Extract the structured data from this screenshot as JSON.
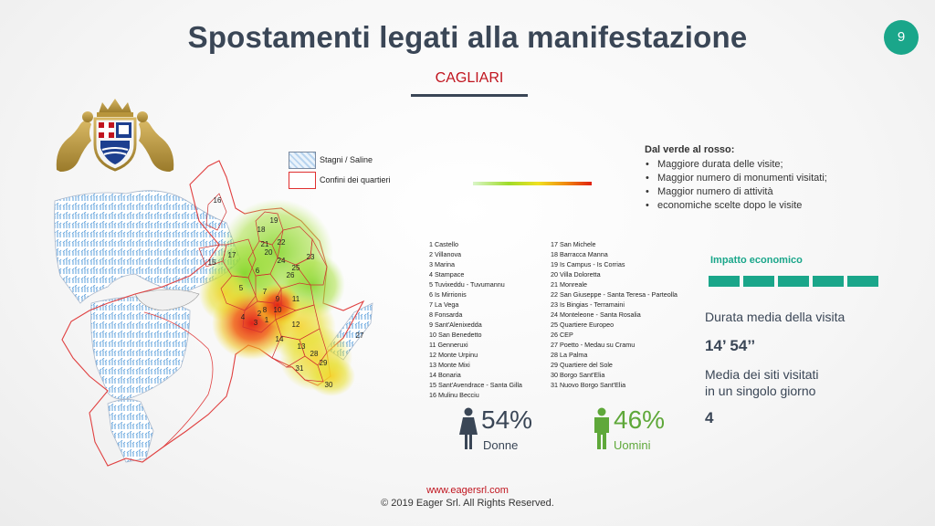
{
  "header": {
    "title": "Spostamenti legati alla manifestazione",
    "page_number": "9",
    "subtitle": "CAGLIARI"
  },
  "legend": {
    "swamp": "Stagni / Saline",
    "borders": "Confini dei quartieri"
  },
  "info": {
    "heading": "Dal verde al rosso:",
    "items": [
      "Maggiore durata delle visite;",
      "Maggior numero di monumenti visitati;",
      "Maggior numero di attività",
      "economiche scelte dopo le visite"
    ]
  },
  "districts_left": [
    "1 Castello",
    "2 Villanova",
    "3 Marina",
    "4 Stampace",
    "5 Tuvixeddu - Tuvumannu",
    "6 Is Mirrionis",
    "7 La Vega",
    "8 Fonsarda",
    "9 Sant'Alenixedda",
    "10 San Benedetto",
    "11 Genneruxi",
    "12 Monte Urpinu",
    "13 Monte Mixi",
    "14 Bonaria",
    "15 Sant'Avendrace - Santa Gilla",
    "16 Mulinu Becciu"
  ],
  "districts_right": [
    "17 San Michele",
    "18 Barracca Manna",
    "19 Is Campus - Is Corrias",
    "20 Villa Doloretta",
    "21 Monreale",
    "22 San Giuseppe - Santa Teresa - Parteolla",
    "23 Is Bingias - Terramaini",
    "24 Monteleone - Santa Rosalia",
    "25 Quartiere Europeo",
    "26 CEP",
    "27 Poetto - Medau su Cramu",
    "28 La Palma",
    "29 Quartiere del Sole",
    "30 Borgo Sant'Elia",
    "31 Nuovo Borgo Sant'Elia"
  ],
  "map_labels": {
    "l1": "1",
    "l2": "2",
    "l3": "3",
    "l4": "4",
    "l5": "5",
    "l6": "6",
    "l7": "7",
    "l8": "8",
    "l9": "9",
    "l10": "10",
    "l11": "11",
    "l12": "12",
    "l13": "13",
    "l14": "14",
    "l15": "15",
    "l16": "16",
    "l17": "17",
    "l18": "18",
    "l19": "19",
    "l20": "20",
    "l21": "21",
    "l22": "22",
    "l23": "23",
    "l24": "24",
    "l25": "25",
    "l26": "26",
    "l27": "27",
    "l28": "28",
    "l29": "29",
    "l30": "30",
    "l31": "31"
  },
  "gender": {
    "women_pct": "54%",
    "women_label": "Donne",
    "men_pct": "46%",
    "men_label": "Uomini"
  },
  "economic": {
    "title": "Impatto economico",
    "duration_label": "Durata media della visita",
    "duration_value": "14’ 54’’",
    "sites_label_1": "Media dei siti visitati",
    "sites_label_2": "in un singolo giorno",
    "sites_value": "4"
  },
  "footer": {
    "link": "www.eagersrl.com",
    "copyright": "© 2019 Eager Srl. All Rights Reserved."
  },
  "colors": {
    "title": "#3a4656",
    "accent_teal": "#1aa68a",
    "accent_red": "#c0141e",
    "green": "#5fa83a"
  }
}
